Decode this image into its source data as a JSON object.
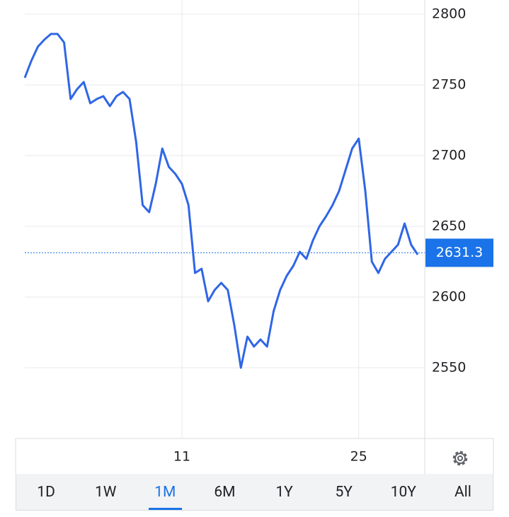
{
  "chart_data": {
    "type": "line",
    "categories": [
      null,
      null,
      null,
      null,
      null,
      null,
      null,
      null,
      null,
      null,
      null,
      null,
      null,
      null,
      null,
      null,
      null,
      null,
      null,
      null,
      null,
      null,
      null,
      null,
      "11",
      null,
      null,
      null,
      null,
      null,
      null,
      null,
      null,
      null,
      null,
      null,
      null,
      null,
      null,
      null,
      null,
      null,
      null,
      null,
      null,
      null,
      null,
      null,
      null,
      null,
      null,
      "25",
      null,
      null,
      null,
      null,
      null,
      null,
      null,
      null,
      null
    ],
    "series": [
      {
        "color": "#2f66e6",
        "values": [
          2755,
          2767,
          2777,
          2782,
          2786,
          2786,
          2780,
          2740,
          2747,
          2752,
          2737,
          2740,
          2742,
          2735,
          2742,
          2745,
          2740,
          2710,
          2665,
          2660,
          2680,
          2705,
          2692,
          2687,
          2680,
          2665,
          2617,
          2620,
          2597,
          2605,
          2610,
          2605,
          2580,
          2550,
          2572,
          2565,
          2570,
          2565,
          2590,
          2605,
          2615,
          2622,
          2632,
          2627,
          2640,
          2650,
          2657,
          2665,
          2675,
          2690,
          2705,
          2712,
          2675,
          2625,
          2617,
          2627,
          2632,
          2637,
          2652,
          2637,
          2630
        ]
      }
    ],
    "ylim": [
      2500,
      2810
    ],
    "yticks": [
      2550,
      2600,
      2650,
      2700,
      2750,
      2800
    ],
    "grid": true,
    "last_value": 2631.3
  },
  "range_buttons": [
    "1D",
    "1W",
    "1M",
    "6M",
    "1Y",
    "5Y",
    "10Y",
    "All"
  ],
  "selected_range": 2
}
